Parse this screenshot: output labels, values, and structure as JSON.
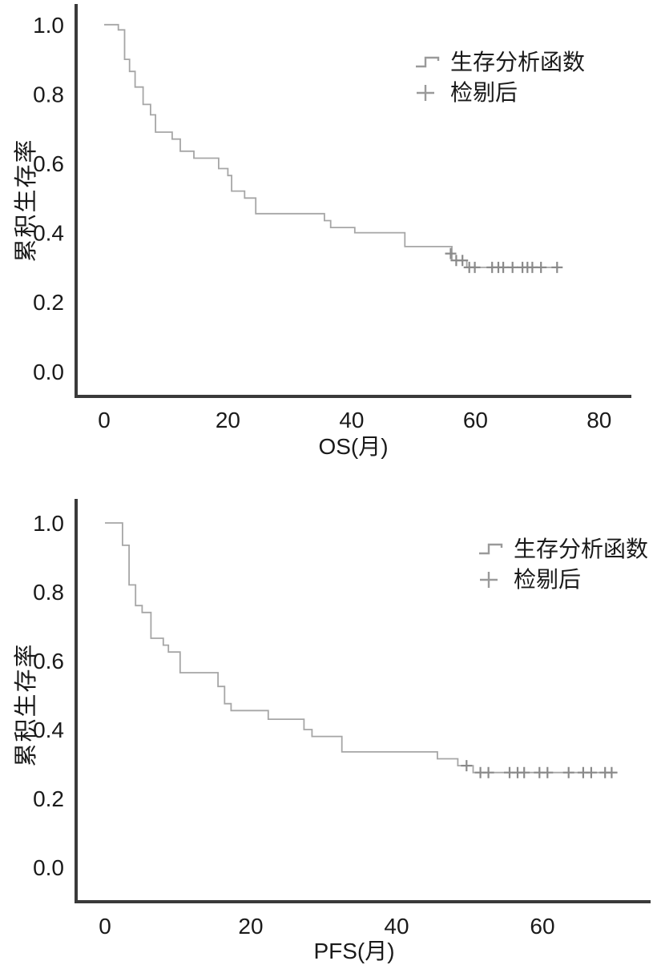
{
  "page": {
    "background": "#ffffff"
  },
  "colors": {
    "curve": "#a6a6a6",
    "censor_mark": "#8a8a8a",
    "axis": "#3a3a3a",
    "text": "#1a1a1a"
  },
  "chart_data": [
    {
      "type": "line",
      "subtype": "kaplan-meier-step",
      "title": "",
      "xlabel": "OS(月)",
      "ylabel": "累积生存率",
      "grid": false,
      "legend_position": "top-right",
      "legend": [
        {
          "symbol": "step-line",
          "label": "生存分析函数"
        },
        {
          "symbol": "plus",
          "label": "检剔后"
        }
      ],
      "xticks": [
        {
          "v": 0,
          "label": "0"
        },
        {
          "v": 20,
          "label": "20"
        },
        {
          "v": 40,
          "label": "40"
        },
        {
          "v": 60,
          "label": "60"
        },
        {
          "v": 80,
          "label": "80"
        }
      ],
      "yticks": [
        {
          "v": 1.0,
          "label": "1.0"
        },
        {
          "v": 0.8,
          "label": "0.8"
        },
        {
          "v": 0.6,
          "label": "0.6"
        },
        {
          "v": 0.4,
          "label": "0.4"
        },
        {
          "v": 0.2,
          "label": "0.2"
        },
        {
          "v": 0.0,
          "label": "0.0"
        }
      ],
      "xlim": [
        -4.53,
        85.2
      ],
      "ylim": [
        -0.072,
        1.048
      ],
      "series": [
        {
          "name": "生存分析函数",
          "steps": [
            [
              0,
              1.0
            ],
            [
              2.3,
              0.985
            ],
            [
              3.3,
              0.9
            ],
            [
              4.1,
              0.865
            ],
            [
              5.0,
              0.82
            ],
            [
              6.3,
              0.77
            ],
            [
              7.5,
              0.74
            ],
            [
              8.3,
              0.69
            ],
            [
              11.0,
              0.67
            ],
            [
              12.3,
              0.635
            ],
            [
              14.5,
              0.615
            ],
            [
              18.5,
              0.585
            ],
            [
              20.0,
              0.565
            ],
            [
              20.6,
              0.52
            ],
            [
              22.7,
              0.5
            ],
            [
              24.5,
              0.455
            ],
            [
              35.6,
              0.435
            ],
            [
              36.6,
              0.415
            ],
            [
              40.5,
              0.4
            ],
            [
              48.6,
              0.36
            ],
            [
              56.2,
              0.32
            ],
            [
              58.6,
              0.3
            ]
          ],
          "end_time": 73.4
        }
      ],
      "censored": [
        [
          56.0,
          0.34
        ],
        [
          56.9,
          0.32
        ],
        [
          57.9,
          0.32
        ],
        [
          59.0,
          0.3
        ],
        [
          59.9,
          0.3
        ],
        [
          62.7,
          0.3
        ],
        [
          63.7,
          0.3
        ],
        [
          64.5,
          0.3
        ],
        [
          66.0,
          0.3
        ],
        [
          67.6,
          0.3
        ],
        [
          68.4,
          0.3
        ],
        [
          69.2,
          0.3
        ],
        [
          70.6,
          0.3
        ],
        [
          73.2,
          0.3
        ]
      ]
    },
    {
      "type": "line",
      "subtype": "kaplan-meier-step",
      "title": "",
      "xlabel": "PFS(月)",
      "ylabel": "累积生存率",
      "grid": false,
      "legend_position": "top-right",
      "legend": [
        {
          "symbol": "step-line",
          "label": "生存分析函数"
        },
        {
          "symbol": "plus",
          "label": "检剔后"
        }
      ],
      "xticks": [
        {
          "v": 0,
          "label": "0"
        },
        {
          "v": 20,
          "label": "20"
        },
        {
          "v": 40,
          "label": "40"
        },
        {
          "v": 60,
          "label": "60"
        }
      ],
      "yticks": [
        {
          "v": 1.0,
          "label": "1.0"
        },
        {
          "v": 0.8,
          "label": "0.8"
        },
        {
          "v": 0.6,
          "label": "0.6"
        },
        {
          "v": 0.4,
          "label": "0.4"
        },
        {
          "v": 0.2,
          "label": "0.2"
        },
        {
          "v": 0.0,
          "label": "0.0"
        }
      ],
      "xlim": [
        -3.96,
        74.84
      ],
      "ylim": [
        -0.1,
        1.0651
      ],
      "series": [
        {
          "name": "生存分析函数",
          "steps": [
            [
              0,
              1.0
            ],
            [
              2.4,
              0.935
            ],
            [
              3.3,
              0.82
            ],
            [
              4.2,
              0.76
            ],
            [
              5.1,
              0.74
            ],
            [
              6.3,
              0.665
            ],
            [
              8.0,
              0.645
            ],
            [
              8.7,
              0.625
            ],
            [
              10.3,
              0.565
            ],
            [
              15.5,
              0.525
            ],
            [
              16.4,
              0.475
            ],
            [
              17.3,
              0.455
            ],
            [
              22.4,
              0.43
            ],
            [
              27.3,
              0.4
            ],
            [
              28.4,
              0.38
            ],
            [
              32.5,
              0.335
            ],
            [
              45.6,
              0.315
            ],
            [
              48.4,
              0.295
            ],
            [
              50.5,
              0.275
            ]
          ],
          "end_time": 70.3
        }
      ],
      "censored": [
        [
          49.6,
          0.295
        ],
        [
          51.5,
          0.275
        ],
        [
          52.6,
          0.275
        ],
        [
          55.5,
          0.275
        ],
        [
          56.6,
          0.275
        ],
        [
          57.5,
          0.275
        ],
        [
          59.6,
          0.275
        ],
        [
          60.7,
          0.275
        ],
        [
          63.6,
          0.275
        ],
        [
          65.6,
          0.275
        ],
        [
          66.7,
          0.275
        ],
        [
          68.6,
          0.275
        ],
        [
          69.5,
          0.275
        ]
      ]
    }
  ]
}
